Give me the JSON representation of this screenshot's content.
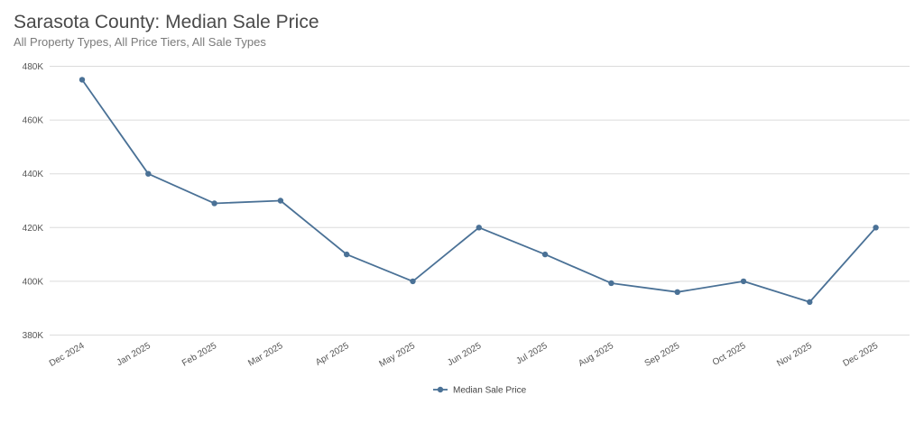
{
  "chart_data": {
    "type": "line",
    "title": "Sarasota County: Median Sale Price",
    "subtitle": "All Property Types, All Price Tiers, All Sale Types",
    "xlabel": "",
    "ylabel": "",
    "categories": [
      "Dec 2024",
      "Jan 2025",
      "Feb 2025",
      "Mar 2025",
      "Apr 2025",
      "May 2025",
      "Jun 2025",
      "Jul 2025",
      "Aug 2025",
      "Sep 2025",
      "Oct 2025",
      "Nov 2025",
      "Dec 2025"
    ],
    "series": [
      {
        "name": "Median Sale Price",
        "values": [
          475000,
          440000,
          429000,
          430000,
          410000,
          400000,
          420000,
          410000,
          399300,
          396000,
          400000,
          392300,
          420000
        ],
        "color": "#4a7196"
      }
    ],
    "ylim": [
      380000,
      480000
    ],
    "yticks": [
      380000,
      400000,
      420000,
      440000,
      460000,
      480000
    ],
    "ytick_labels": [
      "380K",
      "400K",
      "420K",
      "440K",
      "460K",
      "480K"
    ],
    "grid": true,
    "legend": "bottom-center"
  }
}
